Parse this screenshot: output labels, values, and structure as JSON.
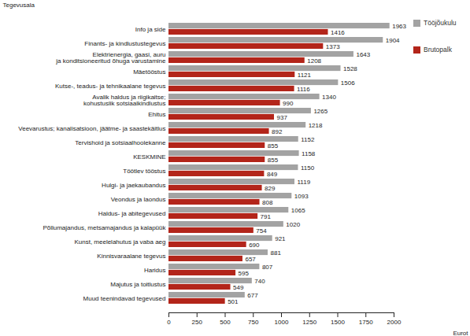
{
  "chart_data": {
    "type": "bar",
    "orientation": "horizontal",
    "ylabel": "Tegevusala",
    "xlabel": "Eurot",
    "categories": [
      "Info ja side",
      "Finants- ja kindlustustegevus",
      "Elektrienergia, gaasi, auru\nja konditsioneeritud õhuga varustamine",
      "Mäetööstus",
      "Kutse-, teadus- ja tehnikaalane tegevus",
      "Avalik haldus ja riigikaitse;\nkohustuslik sotsiaalkindlustus",
      "Ehitus",
      "Veevarustus; kanalisatsioon, jäätme- ja saastekäitlus",
      "Tervishoid ja sotsiaalhoolekanne",
      "KESKMINE",
      "Töötlev tööstus",
      "Hulgi- ja jaekaubandus",
      "Veondus ja laondus",
      "Haldus- ja abitegevused",
      "Põllumajandus, metsamajandus ja kalapüük",
      "Kunst, meelelahutus ja vaba aeg",
      "Kinnisvaraalane tegevus",
      "Haridus",
      "Majutus ja toitlustus",
      "Muud teenindavad tegevused"
    ],
    "series": [
      {
        "name": "Tööjõukulu",
        "color": "#a3a3a3",
        "values": [
          1963,
          1904,
          1643,
          1528,
          1506,
          1340,
          1265,
          1218,
          1152,
          1158,
          1150,
          1119,
          1093,
          1065,
          1020,
          921,
          881,
          807,
          740,
          677
        ]
      },
      {
        "name": "Brutopalk",
        "color": "#b3251a",
        "values": [
          1416,
          1373,
          1208,
          1121,
          1116,
          990,
          937,
          892,
          855,
          855,
          849,
          829,
          808,
          791,
          754,
          690,
          657,
          595,
          549,
          501
        ]
      }
    ],
    "xlim": [
      0,
      2000
    ],
    "xticks": [
      0,
      250,
      500,
      750,
      1000,
      1250,
      1500,
      1750,
      2000
    ],
    "grid": false,
    "legend": "right",
    "data_labels": true
  }
}
